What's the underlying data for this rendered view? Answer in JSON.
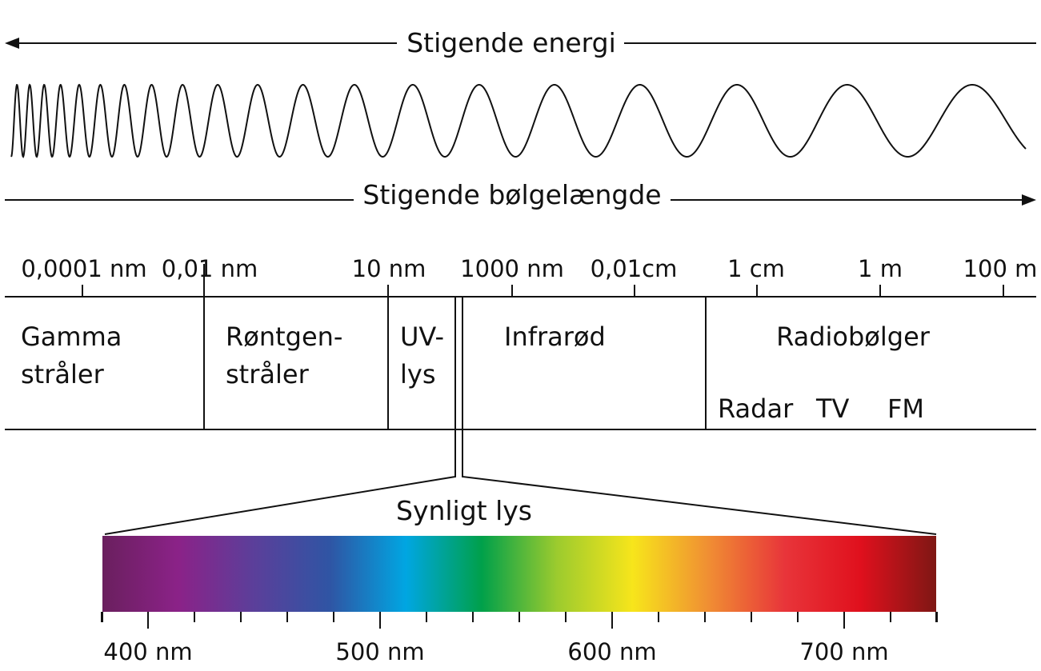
{
  "energy": {
    "label": "Stigende energi"
  },
  "wavelength": {
    "label": "Stigende bølgelængde"
  },
  "scale_labels": [
    "0,0001 nm",
    "0,01 nm",
    "10 nm",
    "1000 nm",
    "0,01cm",
    "1 cm",
    "1 m",
    "100 m"
  ],
  "bands": {
    "gamma": [
      "Gamma",
      "stråler"
    ],
    "xray": [
      "Røntgen-",
      "stråler"
    ],
    "uv": [
      "UV-",
      "lys"
    ],
    "infrared": "Infrarød",
    "radio": "Radiobølger",
    "radio_sub": [
      "Radar",
      "TV",
      "FM"
    ]
  },
  "visible": {
    "label": "Synligt lys",
    "nm_labels": [
      "400 nm",
      "500 nm",
      "600 nm",
      "700 nm"
    ],
    "colors": [
      "#6a1f5e",
      "#8b2288",
      "#5b3f9a",
      "#2f55a4",
      "#00a6e2",
      "#00a04a",
      "#9ccb2e",
      "#f7e51b",
      "#f08e33",
      "#e8353a",
      "#e0101d",
      "#7e1714"
    ]
  }
}
